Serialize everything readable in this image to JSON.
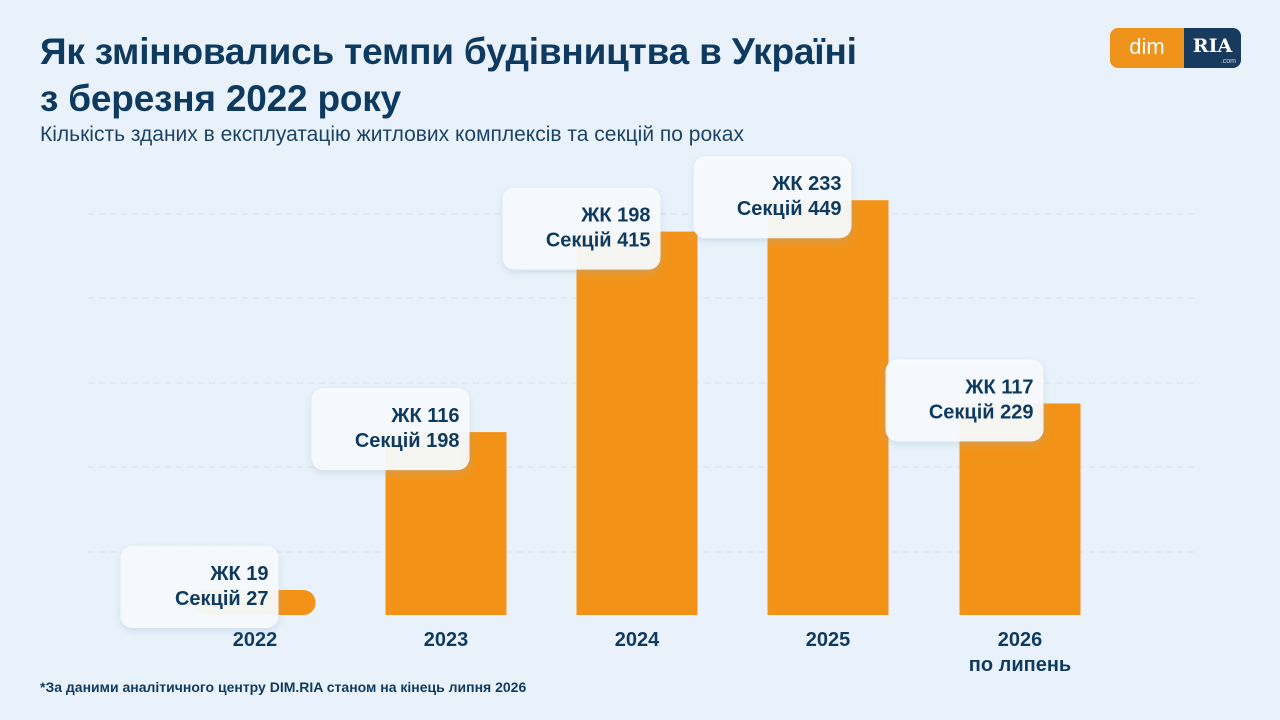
{
  "title_line1": "Як змінювались темпи будівництва в Україні",
  "title_line2": "з березня 2022 року",
  "subtitle": "Кількість зданих в експлуатацію житлових комплексів та секцій по роках",
  "footnote": "*За даними аналітичного центру DIM.RIA станом на кінець липня 2026",
  "logo": {
    "left_text": "dim",
    "right_text": "RIA",
    "sub_text": ".com"
  },
  "colors": {
    "bar": "#f29318",
    "text": "#0f3a5f",
    "background": "#e9f2fa",
    "label_box": "#f7fbfe"
  },
  "chart_data": {
    "type": "bar",
    "categories": [
      [
        "2022"
      ],
      [
        "2023"
      ],
      [
        "2024"
      ],
      [
        "2025"
      ],
      [
        "2026",
        "по липень"
      ]
    ],
    "series": [
      {
        "name": "Секцій",
        "values": [
          27,
          198,
          415,
          449,
          229
        ]
      }
    ],
    "labels": [
      [
        "ЖК 19",
        "Секцій 27"
      ],
      [
        "ЖК 116",
        "Секцій 198"
      ],
      [
        "ЖК 198",
        "Секцій 415"
      ],
      [
        "ЖК 233",
        "Секцій 449"
      ],
      [
        "ЖК 117",
        "Секцій 229"
      ]
    ],
    "ylim": [
      0,
      525
    ],
    "grid": true
  }
}
